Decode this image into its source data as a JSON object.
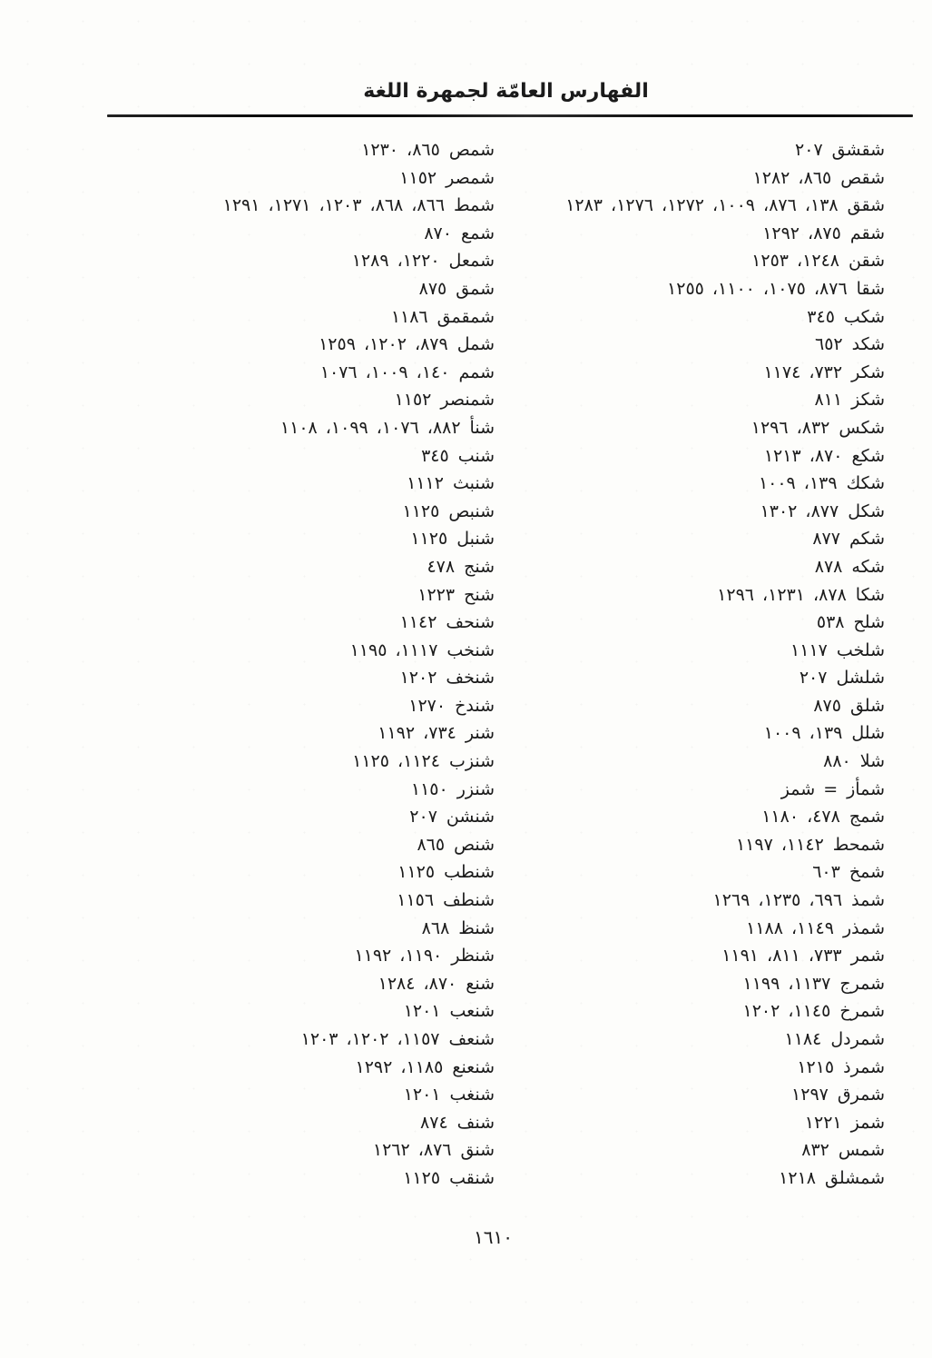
{
  "header": {
    "title": "الفهارس العامّة لجمهرة اللغة"
  },
  "footer": {
    "page_number": "١٦١٠"
  },
  "colors": {
    "ink": "#1b1b1b",
    "paper": "#fdfdfb"
  },
  "index": {
    "right_column": [
      {
        "headword": "شقشق",
        "refs": [
          "٢٠٧"
        ]
      },
      {
        "headword": "شقص",
        "refs": [
          "٨٦٥",
          "١٢٨٢"
        ]
      },
      {
        "headword": "شقق",
        "refs": [
          "١٣٨",
          "٨٧٦",
          "١٠٠٩",
          "١٢٧٢",
          "١٢٧٦",
          "١٢٨٣"
        ]
      },
      {
        "headword": "شقم",
        "refs": [
          "٨٧٥",
          "١٢٩٢"
        ]
      },
      {
        "headword": "شقن",
        "refs": [
          "١٢٤٨",
          "١٢٥٣"
        ]
      },
      {
        "headword": "شقا",
        "refs": [
          "٨٧٦",
          "١٠٧٥",
          "١١٠٠",
          "١٢٥٥"
        ]
      },
      {
        "headword": "شكب",
        "refs": [
          "٣٤٥"
        ]
      },
      {
        "headword": "شكد",
        "refs": [
          "٦٥٢"
        ]
      },
      {
        "headword": "شكر",
        "refs": [
          "٧٣٢",
          "١١٧٤"
        ]
      },
      {
        "headword": "شكز",
        "refs": [
          "٨١١"
        ]
      },
      {
        "headword": "شكس",
        "refs": [
          "٨٣٢",
          "١٢٩٦"
        ]
      },
      {
        "headword": "شكع",
        "refs": [
          "٨٧٠",
          "١٢١٣"
        ]
      },
      {
        "headword": "شكك",
        "refs": [
          "١٣٩",
          "١٠٠٩"
        ]
      },
      {
        "headword": "شكل",
        "refs": [
          "٨٧٧",
          "١٣٠٢"
        ]
      },
      {
        "headword": "شكم",
        "refs": [
          "٨٧٧"
        ]
      },
      {
        "headword": "شكه",
        "refs": [
          "٨٧٨"
        ]
      },
      {
        "headword": "شكا",
        "refs": [
          "٨٧٨",
          "١٢٣١",
          "١٢٩٦"
        ]
      },
      {
        "headword": "شلح",
        "refs": [
          "٥٣٨"
        ]
      },
      {
        "headword": "شلخب",
        "refs": [
          "١١١٧"
        ]
      },
      {
        "headword": "شلشل",
        "refs": [
          "٢٠٧"
        ]
      },
      {
        "headword": "شلق",
        "refs": [
          "٨٧٥"
        ]
      },
      {
        "headword": "شلل",
        "refs": [
          "١٣٩",
          "١٠٠٩"
        ]
      },
      {
        "headword": "شلا",
        "refs": [
          "٨٨٠"
        ]
      },
      {
        "headword": "شمأز",
        "crossref": "شمز"
      },
      {
        "headword": "شمج",
        "refs": [
          "٤٧٨",
          "١١٨٠"
        ]
      },
      {
        "headword": "شمحط",
        "refs": [
          "١١٤٢",
          "١١٩٧"
        ]
      },
      {
        "headword": "شمخ",
        "refs": [
          "٦٠٣"
        ]
      },
      {
        "headword": "شمذ",
        "refs": [
          "٦٩٦",
          "١٢٣٥",
          "١٢٦٩"
        ]
      },
      {
        "headword": "شمذر",
        "refs": [
          "١١٤٩",
          "١١٨٨"
        ]
      },
      {
        "headword": "شمر",
        "refs": [
          "٧٣٣",
          "٨١١",
          "١١٩١"
        ]
      },
      {
        "headword": "شمرج",
        "refs": [
          "١١٣٧",
          "١١٩٩"
        ]
      },
      {
        "headword": "شمرخ",
        "refs": [
          "١١٤٥",
          "١٢٠٢"
        ]
      },
      {
        "headword": "شمردل",
        "refs": [
          "١١٨٤"
        ]
      },
      {
        "headword": "شمرذ",
        "refs": [
          "١٢١٥"
        ]
      },
      {
        "headword": "شمرق",
        "refs": [
          "١٢٩٧"
        ]
      },
      {
        "headword": "شمز",
        "refs": [
          "١٢٢١"
        ]
      },
      {
        "headword": "شمس",
        "refs": [
          "٨٣٢"
        ]
      },
      {
        "headword": "شمشلق",
        "refs": [
          "١٢١٨"
        ]
      }
    ],
    "left_column": [
      {
        "headword": "شمص",
        "refs": [
          "٨٦٥",
          "١٢٣٠"
        ]
      },
      {
        "headword": "شمصر",
        "refs": [
          "١١٥٢"
        ]
      },
      {
        "headword": "شمط",
        "refs": [
          "٨٦٦",
          "٨٦٨",
          "١٢٠٣",
          "١٢٧١",
          "١٢٩١"
        ]
      },
      {
        "headword": "شمع",
        "refs": [
          "٨٧٠"
        ]
      },
      {
        "headword": "شمعل",
        "refs": [
          "١٢٢٠",
          "١٢٨٩"
        ]
      },
      {
        "headword": "شمق",
        "refs": [
          "٨٧٥"
        ]
      },
      {
        "headword": "شمقمق",
        "refs": [
          "١١٨٦"
        ]
      },
      {
        "headword": "شمل",
        "refs": [
          "٨٧٩",
          "١٢٠٢",
          "١٢٥٩"
        ]
      },
      {
        "headword": "شمم",
        "refs": [
          "١٤٠",
          "١٠٠٩",
          "١٠٧٦"
        ]
      },
      {
        "headword": "شمنصر",
        "refs": [
          "١١٥٢"
        ]
      },
      {
        "headword": "شنأ",
        "refs": [
          "٨٨٢",
          "١٠٧٦",
          "١٠٩٩",
          "١١٠٨"
        ]
      },
      {
        "headword": "شنب",
        "refs": [
          "٣٤٥"
        ]
      },
      {
        "headword": "شنبث",
        "refs": [
          "١١١٢"
        ]
      },
      {
        "headword": "شنبص",
        "refs": [
          "١١٢٥"
        ]
      },
      {
        "headword": "شنبل",
        "refs": [
          "١١٢٥"
        ]
      },
      {
        "headword": "شنج",
        "refs": [
          "٤٧٨"
        ]
      },
      {
        "headword": "شنح",
        "refs": [
          "١٢٢٣"
        ]
      },
      {
        "headword": "شنحف",
        "refs": [
          "١١٤٢"
        ]
      },
      {
        "headword": "شنخب",
        "refs": [
          "١١١٧",
          "١١٩٥"
        ]
      },
      {
        "headword": "شنخف",
        "refs": [
          "١٢٠٢"
        ]
      },
      {
        "headword": "شندخ",
        "refs": [
          "١٢٧٠"
        ]
      },
      {
        "headword": "شنر",
        "refs": [
          "٧٣٤",
          "١١٩٢"
        ]
      },
      {
        "headword": "شنزب",
        "refs": [
          "١١٢٤",
          "١١٢٥"
        ]
      },
      {
        "headword": "شنزر",
        "refs": [
          "١١٥٠"
        ]
      },
      {
        "headword": "شنشن",
        "refs": [
          "٢٠٧"
        ]
      },
      {
        "headword": "شنص",
        "refs": [
          "٨٦٥"
        ]
      },
      {
        "headword": "شنطب",
        "refs": [
          "١١٢٥"
        ]
      },
      {
        "headword": "شنطف",
        "refs": [
          "١١٥٦"
        ]
      },
      {
        "headword": "شنظ",
        "refs": [
          "٨٦٨"
        ]
      },
      {
        "headword": "شنظر",
        "refs": [
          "١١٩٠",
          "١١٩٢"
        ]
      },
      {
        "headword": "شنع",
        "refs": [
          "٨٧٠",
          "١٢٨٤"
        ]
      },
      {
        "headword": "شنعب",
        "refs": [
          "١٢٠١"
        ]
      },
      {
        "headword": "شنعف",
        "refs": [
          "١١٥٧",
          "١٢٠٢",
          "١٢٠٣"
        ]
      },
      {
        "headword": "شنعنع",
        "refs": [
          "١١٨٥",
          "١٢٩٢"
        ]
      },
      {
        "headword": "شنغب",
        "refs": [
          "١٢٠١"
        ]
      },
      {
        "headword": "شنف",
        "refs": [
          "٨٧٤"
        ]
      },
      {
        "headword": "شنق",
        "refs": [
          "٨٧٦",
          "١٢٦٢"
        ]
      },
      {
        "headword": "شنقب",
        "refs": [
          "١١٢٥"
        ]
      }
    ]
  }
}
